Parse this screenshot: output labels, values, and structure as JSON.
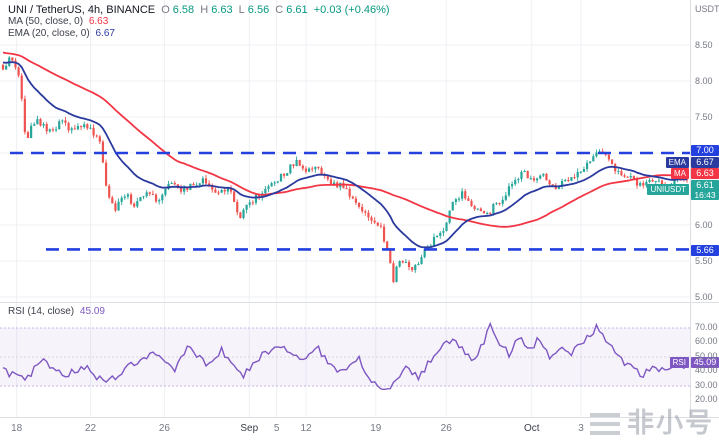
{
  "header": {
    "title": "UNI / TetherUS, 4h, BINANCE",
    "ohlc_letters": {
      "o": "O",
      "h": "H",
      "l": "L",
      "c": "C"
    },
    "ohlc": {
      "o": "6.58",
      "h": "6.63",
      "l": "6.56",
      "c": "6.61",
      "change": "+0.03 (+0.46%)"
    },
    "rows": [
      {
        "label": "MA (50, close, 0)",
        "value": "6.63"
      },
      {
        "label": "EMA (20, close, 0)",
        "value": "6.67"
      }
    ]
  },
  "rsi_panel": {
    "label": "RSI (14, close)",
    "value": "45.09"
  },
  "axis": {
    "unit": "USDT",
    "last_price": "6.61",
    "countdown": "16:43",
    "ema_label": "6.67",
    "ma_label": "6.63",
    "resistance_label": "7.00",
    "support_label": "5.66",
    "rsi_value_label": "45.09",
    "tags": {
      "ema": "EMA",
      "ma": "MA",
      "symbol": "UNIUSDT",
      "rsi": "RSI"
    }
  },
  "watermark": {
    "logo": "three-bars",
    "text": "非小号"
  },
  "chart_data": {
    "type": "candlestick",
    "title": "UNI/USDT perpetual spot chart, 4h candles, Binance",
    "interval": "4h",
    "exchange": "BINANCE",
    "last_ohlc": {
      "open": 6.58,
      "high": 6.63,
      "low": 6.56,
      "close": 6.61,
      "change_abs": 0.03,
      "change_pct": 0.46
    },
    "indicators": {
      "ema20": 6.67,
      "ma50": 6.63,
      "rsi14": 45.09
    },
    "levels": {
      "resistance": 7.0,
      "support": 5.66
    },
    "price_grid": [
      8.5,
      8.0,
      7.5,
      7.0,
      6.5,
      6.0,
      5.5,
      5.0
    ],
    "price_axis_ticks": [
      8.5,
      8.0,
      7.5,
      6.0,
      5.5,
      5.0
    ],
    "rsi_ticks": [
      70,
      60,
      50,
      40,
      30,
      20
    ],
    "rsi_levels": [
      70,
      50,
      30
    ],
    "time_ticks": [
      {
        "label": "18",
        "f": 0.02
      },
      {
        "label": "22",
        "f": 0.128
      },
      {
        "label": "26",
        "f": 0.236
      },
      {
        "label": "Sep",
        "f": 0.36
      },
      {
        "label": "5",
        "f": 0.4
      },
      {
        "label": "12",
        "f": 0.443
      },
      {
        "label": "19",
        "f": 0.545
      },
      {
        "label": "26",
        "f": 0.648
      },
      {
        "label": "Oct",
        "f": 0.773
      },
      {
        "label": "3",
        "f": 0.845
      }
    ],
    "price_keyframes": [
      [
        0.0,
        8.18
      ],
      [
        0.01,
        8.3
      ],
      [
        0.022,
        8.12
      ],
      [
        0.028,
        7.75
      ],
      [
        0.033,
        7.12
      ],
      [
        0.04,
        7.38
      ],
      [
        0.052,
        7.45
      ],
      [
        0.068,
        7.28
      ],
      [
        0.085,
        7.42
      ],
      [
        0.1,
        7.32
      ],
      [
        0.118,
        7.42
      ],
      [
        0.132,
        7.28
      ],
      [
        0.143,
        7.12
      ],
      [
        0.152,
        6.42
      ],
      [
        0.163,
        6.22
      ],
      [
        0.178,
        6.43
      ],
      [
        0.193,
        6.28
      ],
      [
        0.21,
        6.45
      ],
      [
        0.228,
        6.33
      ],
      [
        0.248,
        6.62
      ],
      [
        0.262,
        6.48
      ],
      [
        0.278,
        6.55
      ],
      [
        0.295,
        6.62
      ],
      [
        0.312,
        6.45
      ],
      [
        0.33,
        6.52
      ],
      [
        0.346,
        6.08
      ],
      [
        0.36,
        6.3
      ],
      [
        0.382,
        6.48
      ],
      [
        0.405,
        6.65
      ],
      [
        0.428,
        6.88
      ],
      [
        0.442,
        6.72
      ],
      [
        0.458,
        6.82
      ],
      [
        0.478,
        6.58
      ],
      [
        0.498,
        6.55
      ],
      [
        0.52,
        6.22
      ],
      [
        0.538,
        6.1
      ],
      [
        0.553,
        5.95
      ],
      [
        0.563,
        5.62
      ],
      [
        0.57,
        5.22
      ],
      [
        0.578,
        5.55
      ],
      [
        0.592,
        5.48
      ],
      [
        0.6,
        5.38
      ],
      [
        0.614,
        5.6
      ],
      [
        0.628,
        5.78
      ],
      [
        0.644,
        5.95
      ],
      [
        0.658,
        6.32
      ],
      [
        0.672,
        6.45
      ],
      [
        0.69,
        6.25
      ],
      [
        0.706,
        6.12
      ],
      [
        0.718,
        6.28
      ],
      [
        0.732,
        6.38
      ],
      [
        0.748,
        6.65
      ],
      [
        0.762,
        6.72
      ],
      [
        0.775,
        6.58
      ],
      [
        0.79,
        6.72
      ],
      [
        0.806,
        6.52
      ],
      [
        0.82,
        6.62
      ],
      [
        0.838,
        6.72
      ],
      [
        0.856,
        6.88
      ],
      [
        0.868,
        7.04
      ],
      [
        0.88,
        6.95
      ],
      [
        0.892,
        6.8
      ],
      [
        0.906,
        6.72
      ],
      [
        0.92,
        6.62
      ],
      [
        0.936,
        6.55
      ],
      [
        0.952,
        6.62
      ],
      [
        0.968,
        6.55
      ],
      [
        0.984,
        6.64
      ],
      [
        1.0,
        6.61
      ]
    ],
    "rsi_keyframes": [
      [
        0.0,
        41
      ],
      [
        0.03,
        34
      ],
      [
        0.06,
        48
      ],
      [
        0.09,
        37
      ],
      [
        0.12,
        44
      ],
      [
        0.15,
        31
      ],
      [
        0.19,
        46
      ],
      [
        0.22,
        52
      ],
      [
        0.25,
        40
      ],
      [
        0.27,
        57
      ],
      [
        0.3,
        44
      ],
      [
        0.32,
        55
      ],
      [
        0.35,
        36
      ],
      [
        0.38,
        52
      ],
      [
        0.41,
        58
      ],
      [
        0.44,
        47
      ],
      [
        0.46,
        56
      ],
      [
        0.49,
        38
      ],
      [
        0.52,
        49
      ],
      [
        0.54,
        33
      ],
      [
        0.565,
        27
      ],
      [
        0.59,
        42
      ],
      [
        0.61,
        36
      ],
      [
        0.63,
        52
      ],
      [
        0.655,
        62
      ],
      [
        0.67,
        55
      ],
      [
        0.69,
        48
      ],
      [
        0.705,
        62
      ],
      [
        0.713,
        74
      ],
      [
        0.725,
        60
      ],
      [
        0.74,
        52
      ],
      [
        0.755,
        66
      ],
      [
        0.77,
        55
      ],
      [
        0.785,
        63
      ],
      [
        0.8,
        47
      ],
      [
        0.815,
        56
      ],
      [
        0.83,
        52
      ],
      [
        0.855,
        64
      ],
      [
        0.87,
        71
      ],
      [
        0.885,
        60
      ],
      [
        0.9,
        50
      ],
      [
        0.92,
        42
      ],
      [
        0.935,
        37
      ],
      [
        0.95,
        43
      ],
      [
        0.97,
        40
      ],
      [
        1.0,
        45.09
      ]
    ],
    "colors": {
      "up": "#26a69a",
      "down": "#ef5350",
      "ema": "#2b3a9e",
      "ma": "#f23645",
      "level": "#2441e0",
      "rsi": "#7e57c2",
      "grid": "#eef0f4"
    }
  }
}
